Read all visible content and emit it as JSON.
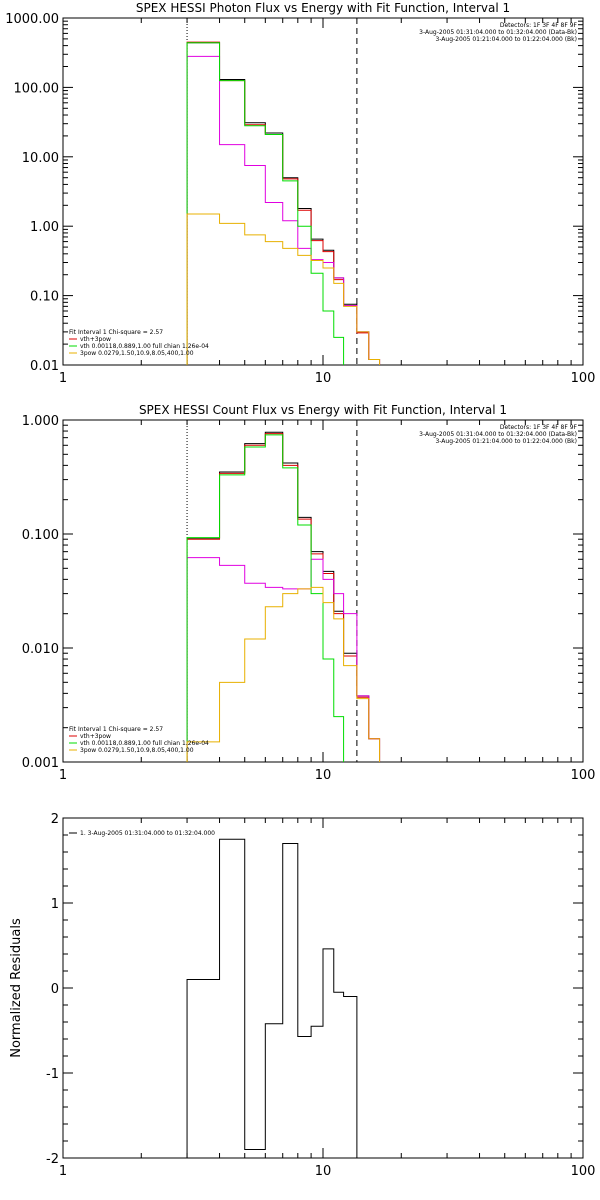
{
  "chart_data": [
    {
      "type": "line",
      "title": "SPEX HESSI Photon Flux vs Energy with Fit Function, Interval 1",
      "ylabel": "",
      "xscale": "log",
      "yscale": "log",
      "xlim": [
        1,
        100
      ],
      "ylim": [
        0.01,
        1000
      ],
      "xticks": [
        1,
        10,
        100
      ],
      "xtick_labels": [
        "1",
        "10",
        "100"
      ],
      "yticks": [
        0.01,
        0.1,
        1,
        10,
        100,
        1000
      ],
      "ytick_labels": [
        "0.01",
        "0.10",
        "1.00",
        "10.00",
        "100.00",
        "1000.00"
      ],
      "vlines": [
        {
          "x": 3,
          "style": "dotted"
        },
        {
          "x": 13.5,
          "style": "dashed"
        }
      ],
      "header_lines": [
        "Detectors: 1F 3F 4F 8F 9F",
        "3-Aug-2005 01:31:04.000 to 01:32:04.000 (Data-Bk)",
        "3-Aug-2005 01:21:04.000 to 01:22:04.000 (Bk)"
      ],
      "legend_lines": [
        "Fit Interval  1    Chi-square = 2.57",
        "vth+3pow",
        "vth 0.00118,0.889,1.00  full chian 1.26e-04",
        "3pow 0.0279,1.50,10.9,8.05,400,1.00"
      ],
      "bin_edges": [
        3.0,
        3.5,
        4.0,
        5.0,
        6.0,
        7.0,
        8.0,
        9.0,
        10.0,
        11.0,
        12.0,
        13.5,
        15.0,
        16.5
      ],
      "series": [
        {
          "name": "",
          "color": "#000000",
          "values": [
            440,
            440,
            130,
            31,
            22,
            5.0,
            1.8,
            0.65,
            0.45,
            0.18,
            0.075,
            0.03,
            0.012
          ]
        },
        {
          "name": "",
          "color": "#dd0000",
          "values": [
            450,
            450,
            125,
            29,
            21,
            4.8,
            1.7,
            0.62,
            0.43,
            0.17,
            0.072,
            0.029,
            0.012
          ]
        },
        {
          "name": "",
          "color": "#e000e0",
          "values": [
            280,
            280,
            15,
            7.5,
            2.2,
            1.2,
            0.48,
            0.33,
            0.3,
            0.18,
            0.072,
            0.03,
            0.012
          ]
        },
        {
          "name": "",
          "color": "#00dd00",
          "values": [
            440,
            440,
            125,
            28,
            21,
            4.5,
            1.0,
            0.21,
            0.06,
            0.025,
            0.008
          ]
        },
        {
          "name": "",
          "color": "#e8b000",
          "values": [
            1.5,
            1.5,
            1.1,
            0.75,
            0.6,
            0.48,
            0.38,
            0.32,
            0.25,
            0.15,
            0.07,
            0.03,
            0.012
          ]
        }
      ]
    },
    {
      "type": "line",
      "title": "SPEX HESSI Count Flux vs Energy with Fit Function, Interval 1",
      "ylabel": "",
      "xscale": "log",
      "yscale": "log",
      "xlim": [
        1,
        100
      ],
      "ylim": [
        0.001,
        1
      ],
      "xticks": [
        1,
        10,
        100
      ],
      "xtick_labels": [
        "1",
        "10",
        "100"
      ],
      "yticks": [
        0.001,
        0.01,
        0.1,
        1
      ],
      "ytick_labels": [
        "0.001",
        "0.010",
        "0.100",
        "1.000"
      ],
      "vlines": [
        {
          "x": 3,
          "style": "dotted"
        },
        {
          "x": 13.5,
          "style": "dashed"
        }
      ],
      "header_lines": [
        "Detectors: 1F 3F 4F 8F 9F",
        "3-Aug-2005 01:31:04.000 to 01:32:04.000 (Data-Bk)",
        "3-Aug-2005 01:21:04.000 to 01:22:04.000 (Bk)"
      ],
      "legend_lines": [
        "Fit Interval  1    Chi-square = 2.57",
        "vth+3pow",
        "vth 0.00118,0.889,1.00  full chian 1.26e-04",
        "3pow 0.0279,1.50,10.9,8.05,400,1.00"
      ],
      "bin_edges": [
        3.0,
        3.5,
        4.0,
        5.0,
        6.0,
        7.0,
        8.0,
        9.0,
        10.0,
        11.0,
        12.0,
        13.5,
        15.0,
        16.5
      ],
      "series": [
        {
          "name": "",
          "color": "#000000",
          "values": [
            0.092,
            0.092,
            0.35,
            0.62,
            0.78,
            0.42,
            0.14,
            0.07,
            0.047,
            0.021,
            0.009,
            0.0038,
            0.0016
          ]
        },
        {
          "name": "",
          "color": "#dd0000",
          "values": [
            0.09,
            0.09,
            0.34,
            0.6,
            0.76,
            0.4,
            0.135,
            0.067,
            0.045,
            0.02,
            0.0085,
            0.0037,
            0.0016
          ]
        },
        {
          "name": "",
          "color": "#e000e0",
          "values": [
            0.062,
            0.062,
            0.053,
            0.037,
            0.034,
            0.033,
            0.033,
            0.06,
            0.04,
            0.03,
            0.02,
            0.0038,
            0.0016
          ]
        },
        {
          "name": "",
          "color": "#00dd00",
          "values": [
            0.093,
            0.093,
            0.33,
            0.58,
            0.74,
            0.38,
            0.12,
            0.03,
            0.008,
            0.0025,
            0.0008
          ]
        },
        {
          "name": "",
          "color": "#e8b000",
          "values": [
            0.0015,
            0.0015,
            0.005,
            0.012,
            0.023,
            0.03,
            0.033,
            0.034,
            0.025,
            0.018,
            0.007,
            0.0036,
            0.0016
          ]
        }
      ]
    },
    {
      "type": "line",
      "title": "",
      "ylabel": "Normalized Residuals",
      "xscale": "log",
      "yscale": "linear",
      "xlim": [
        1,
        100
      ],
      "ylim": [
        -2,
        2
      ],
      "xticks": [
        1,
        10,
        100
      ],
      "xtick_labels": [
        "1",
        "10",
        "100"
      ],
      "yticks": [
        -2,
        -1,
        0,
        1,
        2
      ],
      "ytick_labels": [
        "-2",
        "-1",
        "0",
        "1",
        "2"
      ],
      "legend_lines": [
        "1.  3-Aug-2005 01:31:04.000 to 01:32:04.000"
      ],
      "bin_edges": [
        3.0,
        3.5,
        4.0,
        5.0,
        6.0,
        7.0,
        8.0,
        9.0,
        10.0,
        11.0,
        12.0,
        13.5
      ],
      "series": [
        {
          "name": "",
          "color": "#000000",
          "values": [
            0.1,
            0.1,
            1.75,
            -1.9,
            -0.42,
            1.7,
            -0.57,
            -0.45,
            0.46,
            -0.05,
            -0.1
          ]
        }
      ]
    }
  ]
}
